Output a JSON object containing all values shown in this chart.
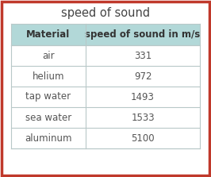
{
  "title": "speed of sound",
  "col1_header": "Material",
  "col2_header": "speed of sound in m/s",
  "rows": [
    [
      "air",
      "331"
    ],
    [
      "helium",
      "972"
    ],
    [
      "tap water",
      "1493"
    ],
    [
      "sea water",
      "1533"
    ],
    [
      "aluminum",
      "5100"
    ]
  ],
  "header_bg": "#b2d8d8",
  "grid_color": "#b8c8c8",
  "outer_border_color": "#c0392b",
  "title_color": "#444444",
  "cell_text_color": "#555555",
  "header_text_color": "#333333",
  "title_fontsize": 10.5,
  "header_fontsize": 8.5,
  "cell_fontsize": 8.5,
  "fig_width": 2.66,
  "fig_height": 2.23,
  "dpi": 100
}
